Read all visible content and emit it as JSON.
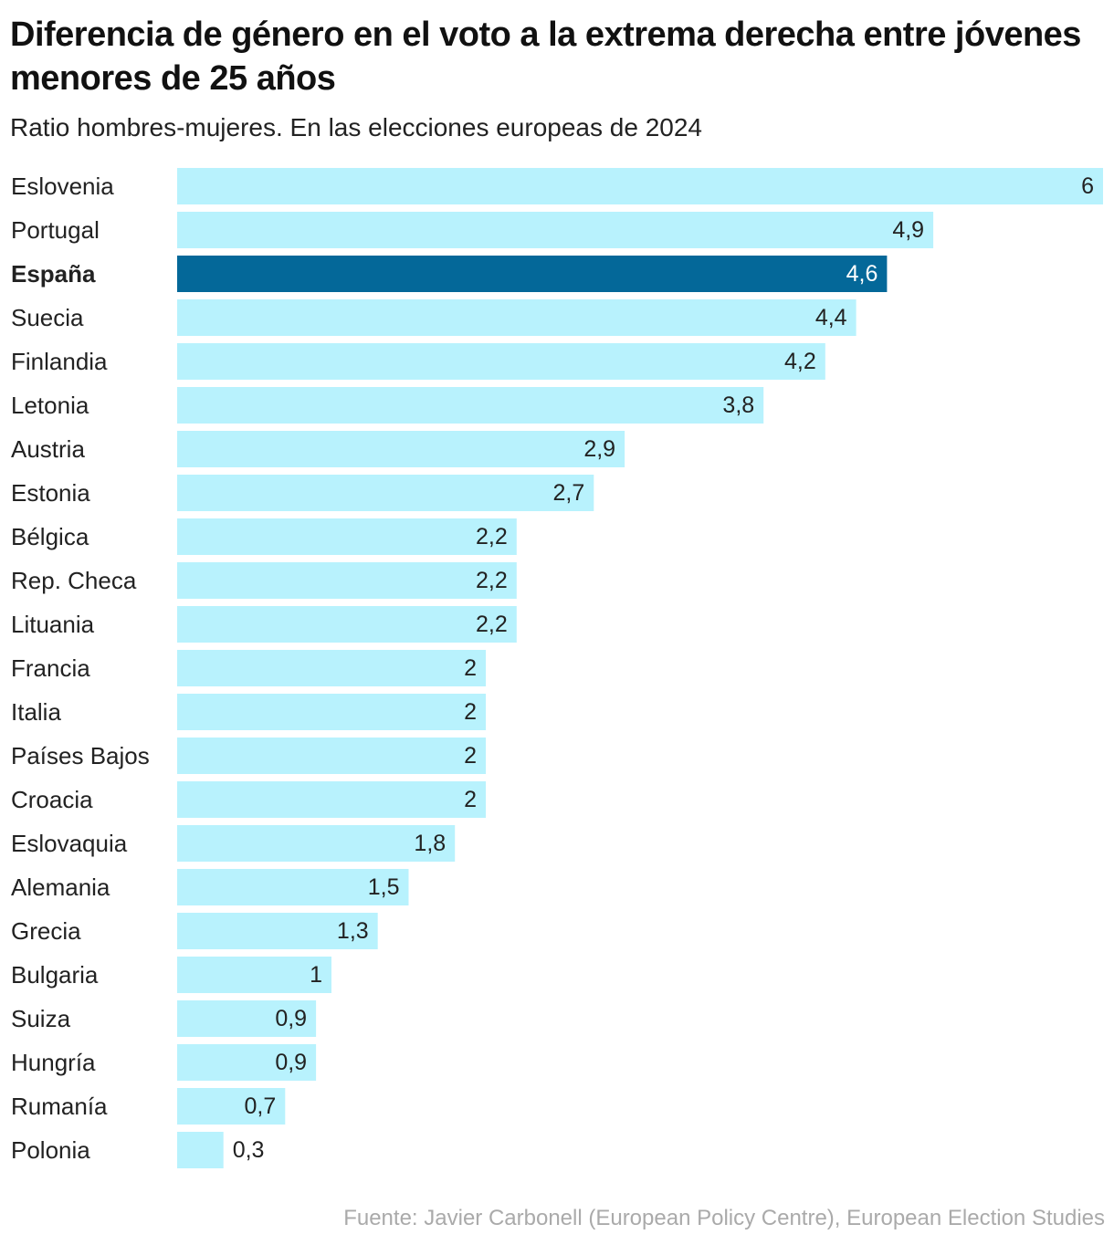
{
  "chart_data": {
    "type": "bar",
    "orientation": "horizontal",
    "title": "Diferencia de género en el voto a la extrema derecha entre jóvenes menores de 25 años",
    "subtitle": "Ratio hombres-mujeres. En las elecciones europeas de 2024",
    "source": "Fuente: Javier Carbonell (European Policy Centre), European Election Studies",
    "xlim": [
      0,
      6
    ],
    "highlight": "España",
    "colors": {
      "bar": "#b8f2fd",
      "highlight_bar": "#046899",
      "label": "#222222",
      "highlight_label": "#ffffff"
    },
    "categories": [
      "Eslovenia",
      "Portugal",
      "España",
      "Suecia",
      "Finlandia",
      "Letonia",
      "Austria",
      "Estonia",
      "Bélgica",
      "Rep. Checa",
      "Lituania",
      "Francia",
      "Italia",
      "Países Bajos",
      "Croacia",
      "Eslovaquia",
      "Alemania",
      "Grecia",
      "Bulgaria",
      "Suiza",
      "Hungría",
      "Rumanía",
      "Polonia"
    ],
    "values": [
      6,
      4.9,
      4.6,
      4.4,
      4.2,
      3.8,
      2.9,
      2.7,
      2.2,
      2.2,
      2.2,
      2,
      2,
      2,
      2,
      1.8,
      1.5,
      1.3,
      1,
      0.9,
      0.9,
      0.7,
      0.3
    ],
    "value_labels": [
      "6",
      "4,9",
      "4,6",
      "4,4",
      "4,2",
      "3,8",
      "2,9",
      "2,7",
      "2,2",
      "2,2",
      "2,2",
      "2",
      "2",
      "2",
      "2",
      "1,8",
      "1,5",
      "1,3",
      "1",
      "0,9",
      "0,9",
      "0,7",
      "0,3"
    ]
  }
}
